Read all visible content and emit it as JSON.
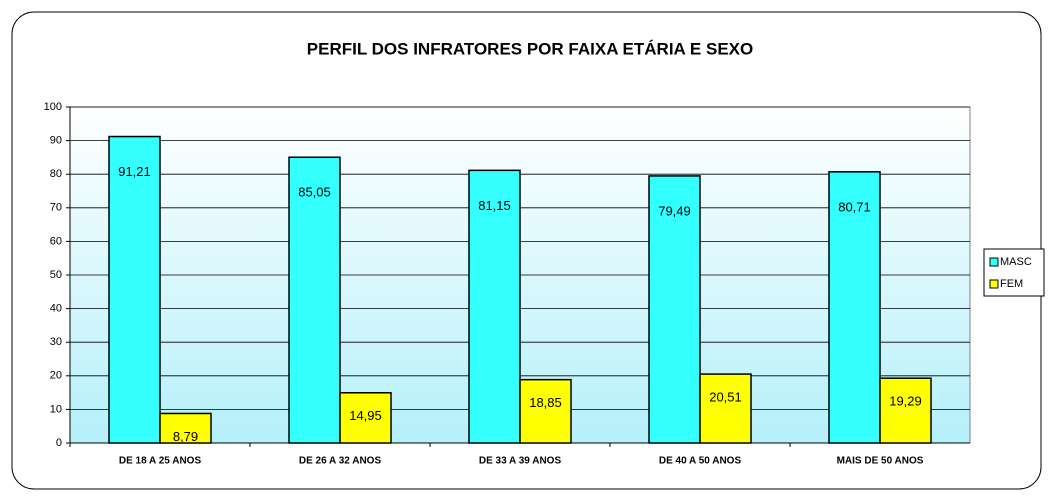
{
  "chart_data": {
    "type": "bar",
    "title": "PERFIL DOS INFRATORES POR FAIXA ETÁRIA E SEXO",
    "categories": [
      "DE 18 A 25 ANOS",
      "DE 26 A 32 ANOS",
      "DE 33 A 39 ANOS",
      "DE 40 A 50 ANOS",
      "MAIS DE 50 ANOS"
    ],
    "series": [
      {
        "name": "MASC",
        "color": "#33ffff",
        "values": [
          91.21,
          85.05,
          81.15,
          79.49,
          80.71
        ],
        "value_labels": [
          "91,21",
          "85,05",
          "81,15",
          "79,49",
          "80,71"
        ]
      },
      {
        "name": "FEM",
        "color": "#ffff00",
        "values": [
          8.79,
          14.95,
          18.85,
          20.51,
          19.29
        ],
        "value_labels": [
          "8,79",
          "14,95",
          "18,85",
          "20,51",
          "19,29"
        ]
      }
    ],
    "ylim": [
      0,
      100
    ],
    "yticks": [
      0,
      10,
      20,
      30,
      40,
      50,
      60,
      70,
      80,
      90,
      100
    ],
    "grid": true,
    "legend": "right"
  }
}
